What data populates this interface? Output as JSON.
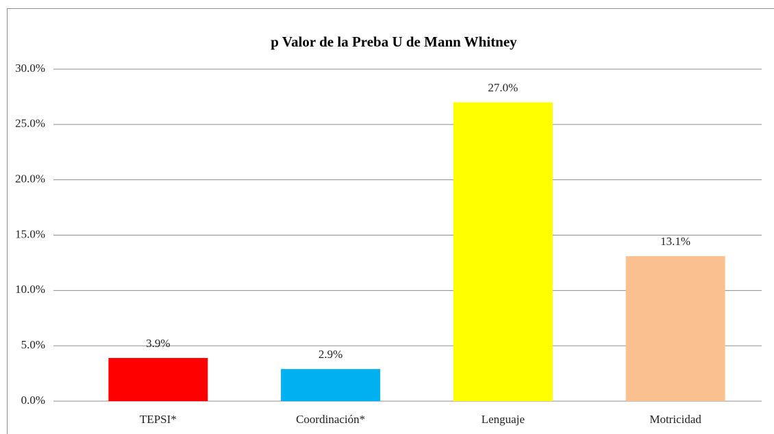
{
  "chart_data": {
    "type": "bar",
    "title": "p   Valor  de la Preba  U de Mann Whitney",
    "categories": [
      "TEPSI*",
      "Coordinación*",
      "Lenguaje",
      "Motricidad"
    ],
    "values": [
      3.9,
      2.9,
      27.0,
      13.1
    ],
    "value_labels": [
      "3.9%",
      "2.9%",
      "27.0%",
      "13.1%"
    ],
    "colors": [
      "#ff0000",
      "#00b0f0",
      "#ffff00",
      "#fac090"
    ],
    "ylim": [
      0,
      30
    ],
    "yticks": [
      {
        "value": 0,
        "label": "0.0%"
      },
      {
        "value": 5,
        "label": "5.0%"
      },
      {
        "value": 10,
        "label": "10.0%"
      },
      {
        "value": 15,
        "label": "15.0%"
      },
      {
        "value": 20,
        "label": "20.0%"
      },
      {
        "value": 25,
        "label": "25.0%"
      },
      {
        "value": 30,
        "label": "30.0%"
      }
    ],
    "grid": true
  }
}
